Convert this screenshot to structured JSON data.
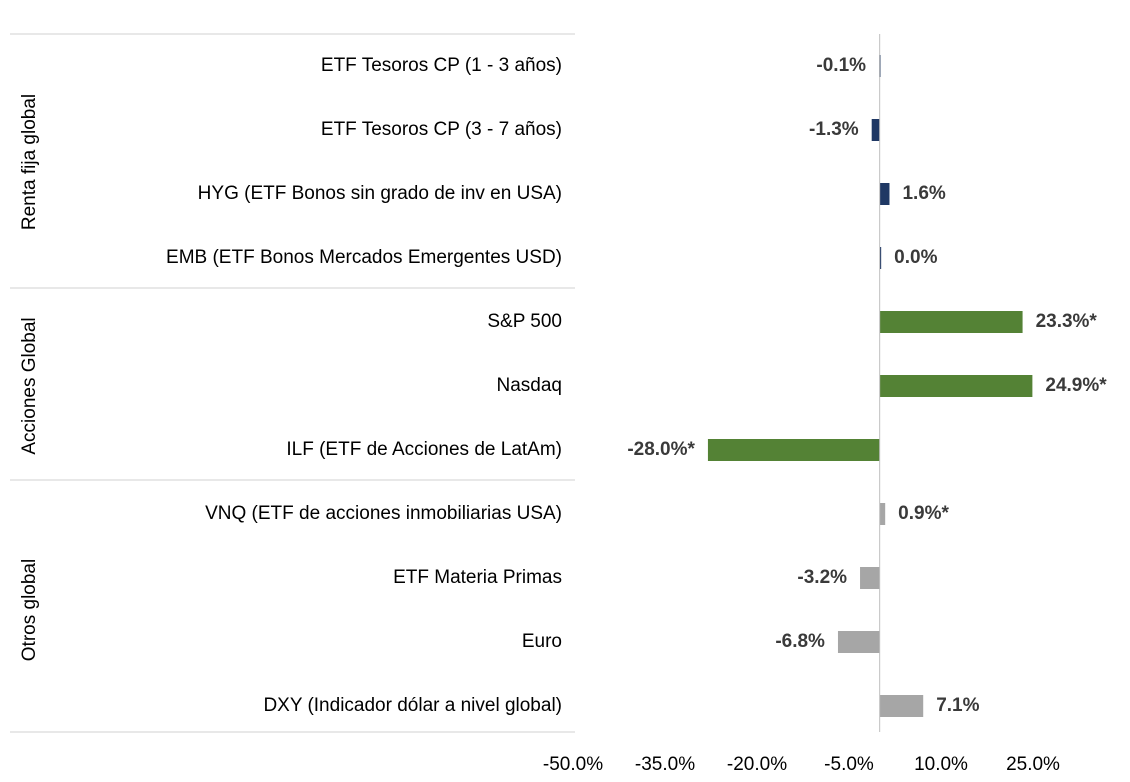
{
  "chart_data": {
    "type": "bar",
    "orientation": "horizontal",
    "groups": [
      {
        "name": "Renta fija global",
        "color": "#1f3864",
        "categories": [
          "ETF Tesoros CP (1 - 3 años)",
          "ETF Tesoros CP (3 - 7 años)",
          "HYG (ETF Bonos sin grado de inv en USA)",
          "EMB (ETF Bonos Mercados Emergentes USD)"
        ],
        "values": [
          -0.1,
          -1.3,
          1.6,
          0.0
        ],
        "value_labels": [
          "-0.1%",
          "-1.3%",
          "1.6%",
          "0.0%"
        ]
      },
      {
        "name": "Acciones Global",
        "color": "#548235",
        "categories": [
          "S&P 500",
          "Nasdaq",
          "ILF (ETF de Acciones de LatAm)"
        ],
        "values": [
          23.3,
          24.9,
          -28.0
        ],
        "value_labels": [
          "23.3%*",
          "24.9%*",
          "-28.0%*"
        ]
      },
      {
        "name": "Otros global",
        "color": "#a6a6a6",
        "categories": [
          "VNQ (ETF de acciones inmobiliarias USA)",
          "ETF Materia Primas",
          "Euro",
          "DXY (Indicador dólar a nivel global)"
        ],
        "values": [
          0.9,
          -3.2,
          -6.8,
          7.1
        ],
        "value_labels": [
          "0.9%*",
          "-3.2%",
          "-6.8%",
          "7.1%"
        ]
      }
    ],
    "xlim": [
      -50,
      25
    ],
    "xticks": [
      {
        "value": -50,
        "label": "-50.0%"
      },
      {
        "value": -35,
        "label": "-35.0%"
      },
      {
        "value": -20,
        "label": "-20.0%"
      },
      {
        "value": -5,
        "label": "-5.0%"
      },
      {
        "value": 10,
        "label": "10.0%"
      },
      {
        "value": 25,
        "label": "25.0%"
      }
    ]
  }
}
